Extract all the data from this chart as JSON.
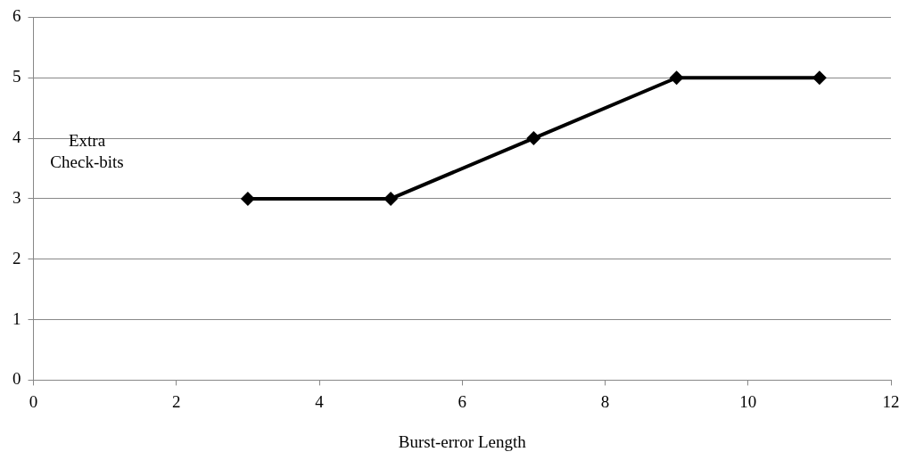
{
  "chart_data": {
    "type": "line",
    "xlabel": "Burst-error Length",
    "ylabel": "Extra Check-bits",
    "x": [
      3,
      5,
      7,
      9,
      11
    ],
    "series": [
      {
        "color": "#000000",
        "values": [
          3,
          3,
          4,
          5,
          5
        ]
      }
    ],
    "xlim": [
      0,
      12
    ],
    "xticks": [
      0,
      2,
      4,
      6,
      8,
      10,
      12
    ],
    "ylim": [
      0,
      6
    ],
    "yticks": [
      0,
      1,
      2,
      3,
      4,
      5,
      6
    ],
    "grid": "y",
    "legend": false,
    "marker": "diamond",
    "line_style": "solid"
  }
}
